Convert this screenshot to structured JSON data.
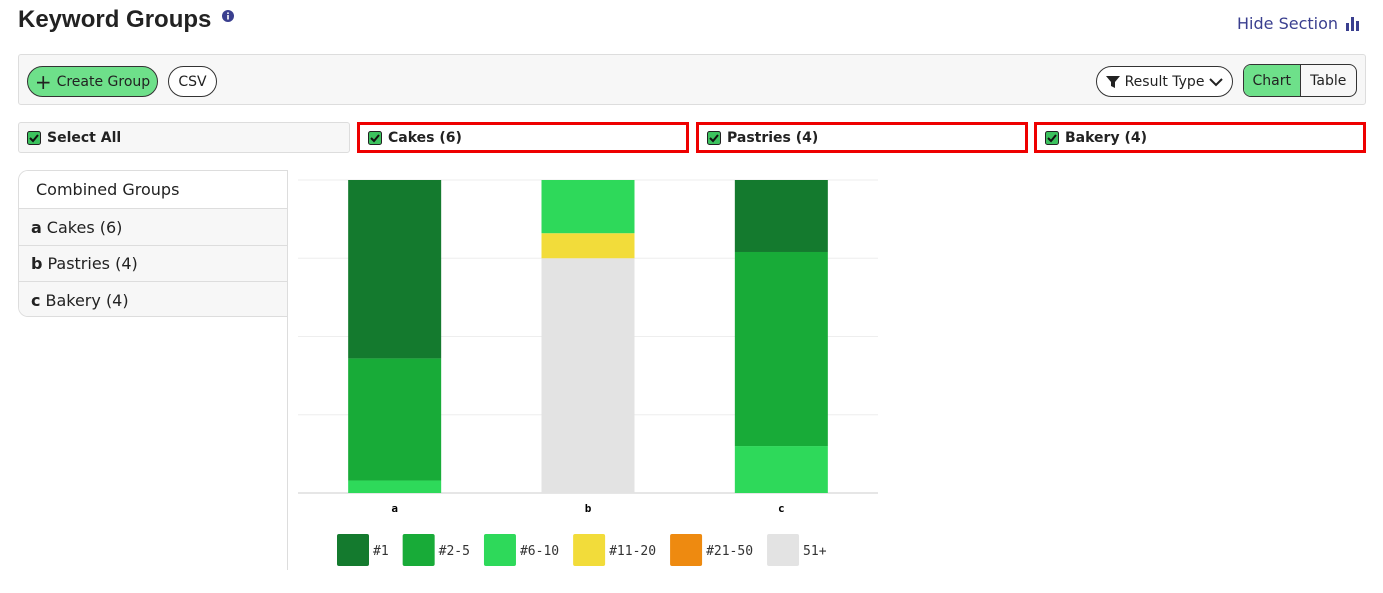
{
  "header": {
    "title": "Keyword Groups",
    "action": "Hide Section"
  },
  "toolbar": {
    "create": "Create Group",
    "csv": "CSV",
    "result_type": "Result Type",
    "views": [
      "Chart",
      "Table"
    ]
  },
  "filters": [
    "Select All",
    "Cakes (6)",
    "Pastries (4)",
    "Bakery (4)"
  ],
  "sidebar": {
    "title": "Combined Groups",
    "items": [
      {
        "letter": "a",
        "label": "Cakes (6)"
      },
      {
        "letter": "b",
        "label": "Pastries (4)"
      },
      {
        "letter": "c",
        "label": "Bakery (4)"
      }
    ]
  },
  "chart_data": {
    "type": "stacked_bar",
    "categories": [
      "a",
      "b",
      "c"
    ],
    "series": [
      {
        "name": "#1",
        "color": "#147a2e",
        "values": [
          57,
          0,
          23
        ]
      },
      {
        "name": "#2-5",
        "color": "#18ab38",
        "values": [
          39,
          0,
          62
        ]
      },
      {
        "name": "#6-10",
        "color": "#2ed95a",
        "values": [
          4,
          17,
          15
        ]
      },
      {
        "name": "#11-20",
        "color": "#f2dc3a",
        "values": [
          0,
          8,
          0
        ]
      },
      {
        "name": "#21-50",
        "color": "#ee8a10",
        "values": [
          0,
          0,
          0
        ]
      },
      {
        "name": "51+",
        "color": "#e3e3e3",
        "values": [
          0,
          75,
          0
        ]
      }
    ],
    "ylim": [
      0,
      100
    ],
    "yticks": [
      0,
      25,
      50,
      75,
      100
    ],
    "grid": true
  }
}
